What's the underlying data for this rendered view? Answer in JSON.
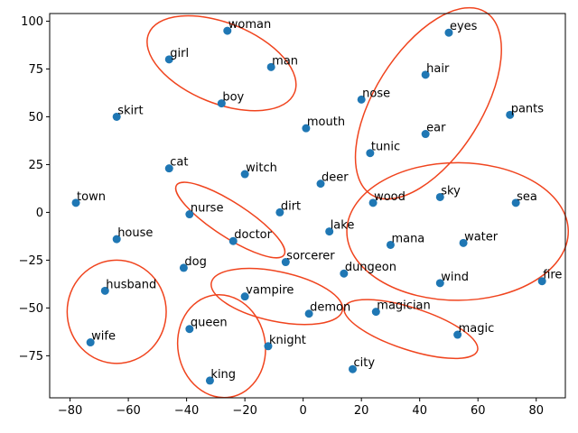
{
  "chart_data": {
    "type": "scatter",
    "title": "",
    "xlabel": "",
    "ylabel": "",
    "xlim": [
      -87,
      90
    ],
    "ylim": [
      -97,
      104
    ],
    "xticks": [
      -80,
      -60,
      -40,
      -20,
      0,
      20,
      40,
      60,
      80
    ],
    "yticks": [
      -75,
      -50,
      -25,
      0,
      25,
      50,
      75,
      100
    ],
    "grid": false,
    "point_color": "#1f77b4",
    "ellipse_color": "#f0441e",
    "points": [
      {
        "label": "woman",
        "x": -26,
        "y": 95
      },
      {
        "label": "girl",
        "x": -46,
        "y": 80
      },
      {
        "label": "man",
        "x": -11,
        "y": 76
      },
      {
        "label": "boy",
        "x": -28,
        "y": 57
      },
      {
        "label": "skirt",
        "x": -64,
        "y": 50
      },
      {
        "label": "eyes",
        "x": 50,
        "y": 94
      },
      {
        "label": "hair",
        "x": 42,
        "y": 72
      },
      {
        "label": "nose",
        "x": 20,
        "y": 59
      },
      {
        "label": "pants",
        "x": 71,
        "y": 51
      },
      {
        "label": "mouth",
        "x": 1,
        "y": 44
      },
      {
        "label": "ear",
        "x": 42,
        "y": 41
      },
      {
        "label": "tunic",
        "x": 23,
        "y": 31
      },
      {
        "label": "cat",
        "x": -46,
        "y": 23
      },
      {
        "label": "witch",
        "x": -20,
        "y": 20
      },
      {
        "label": "deer",
        "x": 6,
        "y": 15
      },
      {
        "label": "town",
        "x": -78,
        "y": 5
      },
      {
        "label": "sky",
        "x": 47,
        "y": 8
      },
      {
        "label": "wood",
        "x": 24,
        "y": 5
      },
      {
        "label": "sea",
        "x": 73,
        "y": 5
      },
      {
        "label": "nurse",
        "x": -39,
        "y": -1
      },
      {
        "label": "dirt",
        "x": -8,
        "y": 0
      },
      {
        "label": "lake",
        "x": 9,
        "y": -10
      },
      {
        "label": "house",
        "x": -64,
        "y": -14
      },
      {
        "label": "doctor",
        "x": -24,
        "y": -15
      },
      {
        "label": "mana",
        "x": 30,
        "y": -17
      },
      {
        "label": "water",
        "x": 55,
        "y": -16
      },
      {
        "label": "dog",
        "x": -41,
        "y": -29
      },
      {
        "label": "sorcerer",
        "x": -6,
        "y": -26
      },
      {
        "label": "dungeon",
        "x": 14,
        "y": -32
      },
      {
        "label": "fire",
        "x": 82,
        "y": -36
      },
      {
        "label": "wind",
        "x": 47,
        "y": -37
      },
      {
        "label": "husband",
        "x": -68,
        "y": -41
      },
      {
        "label": "vampire",
        "x": -20,
        "y": -44
      },
      {
        "label": "demon",
        "x": 2,
        "y": -53
      },
      {
        "label": "magician",
        "x": 25,
        "y": -52
      },
      {
        "label": "magic",
        "x": 53,
        "y": -64
      },
      {
        "label": "queen",
        "x": -39,
        "y": -61
      },
      {
        "label": "wife",
        "x": -73,
        "y": -68
      },
      {
        "label": "knight",
        "x": -12,
        "y": -70
      },
      {
        "label": "king",
        "x": -32,
        "y": -88
      },
      {
        "label": "city",
        "x": 17,
        "y": -82
      }
    ],
    "ellipses": [
      {
        "cx": -28,
        "cy": 78,
        "rx": 27,
        "ry": 21,
        "angle": -22
      },
      {
        "cx": 43,
        "cy": 57,
        "rx": 37,
        "ry": 28,
        "angle": 58
      },
      {
        "cx": 53,
        "cy": -10,
        "rx": 38,
        "ry": 36,
        "angle": 0
      },
      {
        "cx": -25,
        "cy": -4,
        "rx": 22,
        "ry": 9,
        "angle": -33
      },
      {
        "cx": -9,
        "cy": -44,
        "rx": 23,
        "ry": 13,
        "angle": -12
      },
      {
        "cx": 37,
        "cy": -61,
        "rx": 24,
        "ry": 11,
        "angle": -18
      },
      {
        "cx": -64,
        "cy": -52,
        "rx": 17,
        "ry": 27,
        "angle": 0
      },
      {
        "cx": -28,
        "cy": -70,
        "rx": 15,
        "ry": 27,
        "angle": 10
      }
    ]
  }
}
